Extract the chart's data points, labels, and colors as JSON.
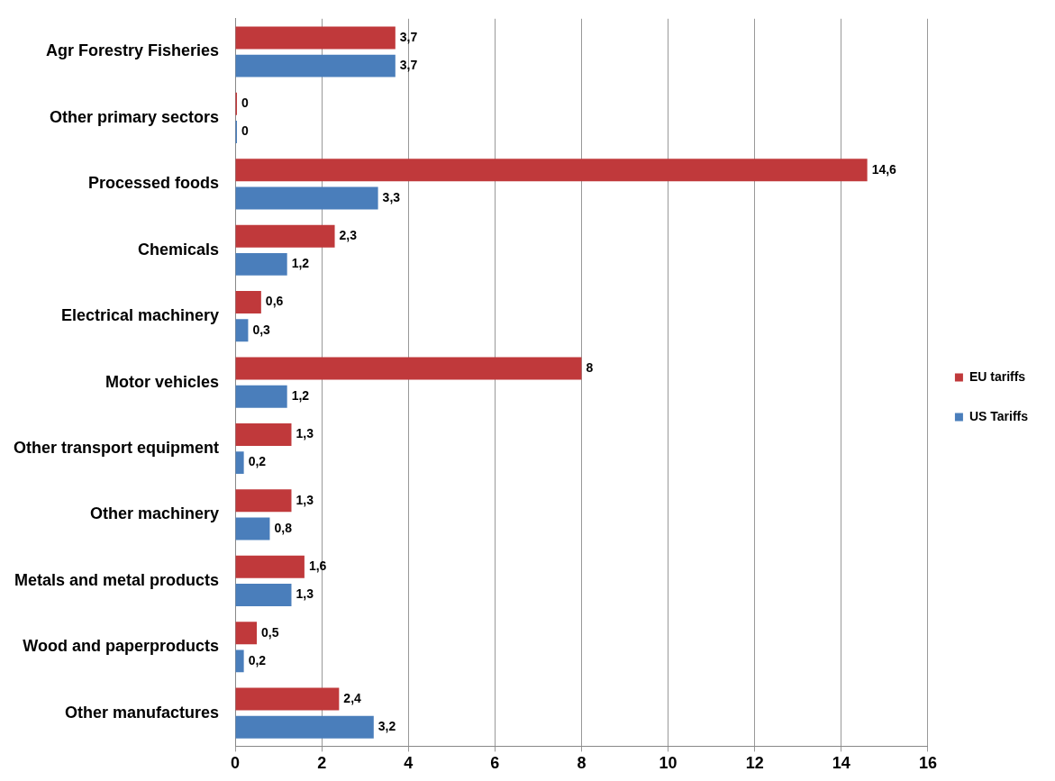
{
  "chart_data": {
    "type": "bar",
    "orientation": "horizontal",
    "categories": [
      "Agr Forestry Fisheries",
      "Other primary sectors",
      "Processed foods",
      "Chemicals",
      "Electrical machinery",
      "Motor vehicles",
      "Other transport equipment",
      "Other machinery",
      "Metals and metal products",
      "Wood and paperproducts",
      "Other manufactures"
    ],
    "series": [
      {
        "name": "EU tariffs",
        "color": "#c0393b",
        "values": [
          3.7,
          0,
          14.6,
          2.3,
          0.6,
          8,
          1.3,
          1.3,
          1.6,
          0.5,
          2.4
        ],
        "value_labels": [
          "3,7",
          "0",
          "14,6",
          "2,3",
          "0,6",
          "8",
          "1,3",
          "1,3",
          "1,6",
          "0,5",
          "2,4"
        ]
      },
      {
        "name": "US Tariffs",
        "color": "#4a7ebb",
        "values": [
          3.7,
          0,
          3.3,
          1.2,
          0.3,
          1.2,
          0.2,
          0.8,
          1.3,
          0.2,
          3.2
        ],
        "value_labels": [
          "3,7",
          "0",
          "3,3",
          "1,2",
          "0,3",
          "1,2",
          "0,2",
          "0,8",
          "1,3",
          "0,2",
          "3,2"
        ]
      }
    ],
    "xlim": [
      0,
      16
    ],
    "xticks": [
      0,
      2,
      4,
      6,
      8,
      10,
      12,
      14,
      16
    ],
    "grid": "x",
    "legend": "right"
  }
}
